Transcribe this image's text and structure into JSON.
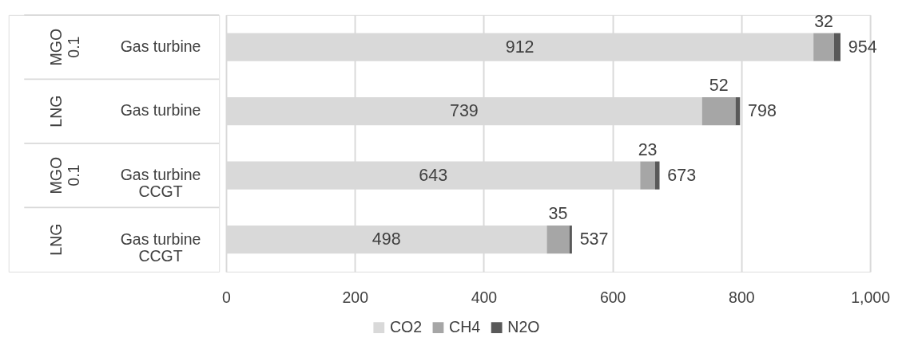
{
  "chart_data": {
    "type": "bar",
    "orientation": "horizontal",
    "stacked": true,
    "categories": [
      "Gas turbine",
      "Gas turbine",
      "Gas turbine\nCCGT",
      "Gas turbine\nCCGT"
    ],
    "annotations": [
      "MGO\n0.1",
      "LNG",
      "MGO\n0.1",
      "LNG"
    ],
    "series": [
      {
        "name": "CO2",
        "color": "#d9d9d9",
        "values": [
          912,
          739,
          643,
          498
        ],
        "value_labels": [
          "912",
          "739",
          "643",
          "498"
        ]
      },
      {
        "name": "CH4",
        "color": "#a6a6a6",
        "values": [
          32,
          52,
          23,
          35
        ],
        "value_labels": [
          "32",
          "52",
          "23",
          "35"
        ]
      },
      {
        "name": "N2O",
        "color": "#595959",
        "values": [
          10,
          7,
          7,
          4
        ]
      }
    ],
    "totals": [
      "954",
      "798",
      "673",
      "537"
    ],
    "xlim": [
      0,
      1000
    ],
    "xticks": [
      0,
      200,
      400,
      600,
      800,
      {
        "value": 1000,
        "label": "1,000"
      }
    ],
    "grid": "x",
    "legend": "bottom"
  }
}
